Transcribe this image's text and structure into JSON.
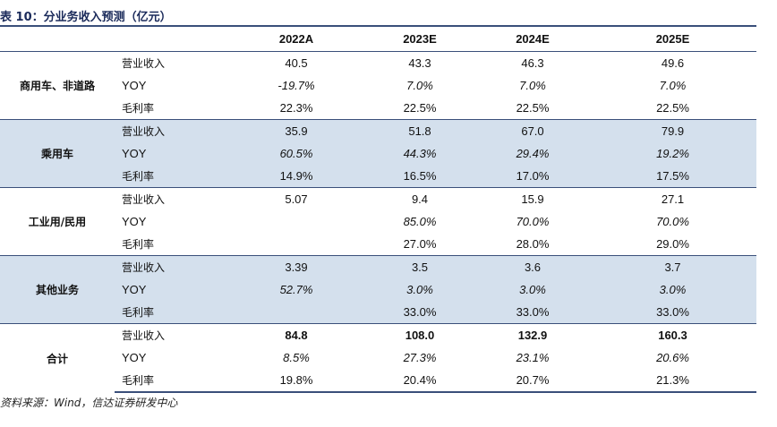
{
  "title": "表 10：分业务收入预测（亿元）",
  "columns": [
    "",
    "",
    "2022A",
    "2023E",
    "2024E",
    "2025E"
  ],
  "groups": [
    {
      "name": "商用车、非道路",
      "rows": [
        {
          "metric": "营业收入",
          "values": [
            "40.5",
            "43.3",
            "46.3",
            "49.6"
          ]
        },
        {
          "metric": "YOY",
          "values": [
            "-19.7%",
            "7.0%",
            "7.0%",
            "7.0%"
          ]
        },
        {
          "metric": "毛利率",
          "values": [
            "22.3%",
            "22.5%",
            "22.5%",
            "22.5%"
          ]
        }
      ]
    },
    {
      "name": "乘用车",
      "rows": [
        {
          "metric": "营业收入",
          "values": [
            "35.9",
            "51.8",
            "67.0",
            "79.9"
          ]
        },
        {
          "metric": "YOY",
          "values": [
            "60.5%",
            "44.3%",
            "29.4%",
            "19.2%"
          ]
        },
        {
          "metric": "毛利率",
          "values": [
            "14.9%",
            "16.5%",
            "17.0%",
            "17.5%"
          ]
        }
      ]
    },
    {
      "name": "工业用/民用",
      "rows": [
        {
          "metric": "营业收入",
          "values": [
            "5.07",
            "9.4",
            "15.9",
            "27.1"
          ]
        },
        {
          "metric": "YOY",
          "values": [
            "",
            "85.0%",
            "70.0%",
            "70.0%"
          ]
        },
        {
          "metric": "毛利率",
          "values": [
            "",
            "27.0%",
            "28.0%",
            "29.0%"
          ]
        }
      ]
    },
    {
      "name": "其他业务",
      "rows": [
        {
          "metric": "营业收入",
          "values": [
            "3.39",
            "3.5",
            "3.6",
            "3.7"
          ]
        },
        {
          "metric": "YOY",
          "values": [
            "52.7%",
            "3.0%",
            "3.0%",
            "3.0%"
          ]
        },
        {
          "metric": "毛利率",
          "values": [
            "",
            "33.0%",
            "33.0%",
            "33.0%"
          ]
        }
      ]
    },
    {
      "name": "合计",
      "rows": [
        {
          "metric": "营业收入",
          "values": [
            "84.8",
            "108.0",
            "132.9",
            "160.3"
          ]
        },
        {
          "metric": "YOY",
          "values": [
            "8.5%",
            "27.3%",
            "23.1%",
            "20.6%"
          ]
        },
        {
          "metric": "毛利率",
          "values": [
            "19.8%",
            "20.4%",
            "20.7%",
            "21.3%"
          ]
        }
      ]
    }
  ],
  "source": "资料来源：Wind，信达证券研发中心",
  "colors": {
    "rule": "#3a4f7a",
    "shade": "#d4e0ed",
    "title": "#1a2a5a"
  }
}
